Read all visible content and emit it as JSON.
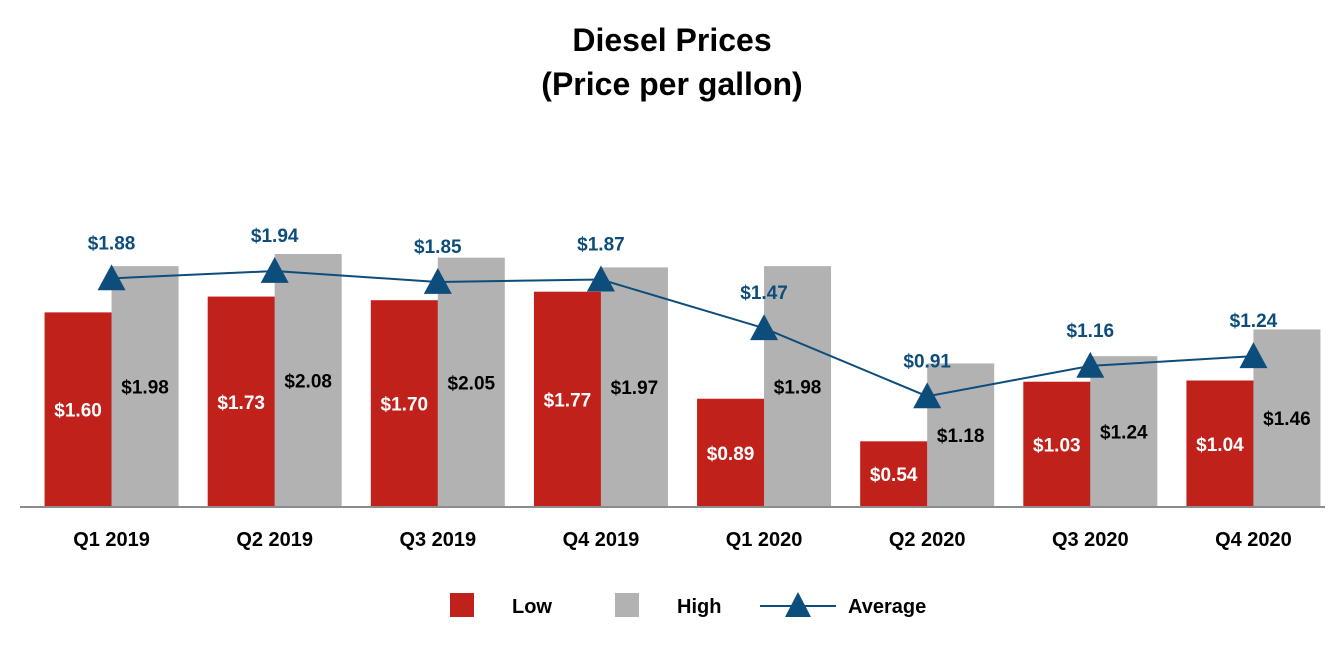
{
  "chart_data": {
    "type": "bar",
    "title": "Diesel Prices",
    "subtitle": "(Price per gallon)",
    "categories": [
      "Q1 2019",
      "Q2 2019",
      "Q3 2019",
      "Q4 2019",
      "Q1 2020",
      "Q2 2020",
      "Q3 2020",
      "Q4 2020"
    ],
    "series": [
      {
        "name": "Low",
        "kind": "bar",
        "color": "#c0211a",
        "label_color": "#ffffff",
        "values": [
          1.6,
          1.73,
          1.7,
          1.77,
          0.89,
          0.54,
          1.03,
          1.04
        ],
        "labels": [
          "$1.60",
          "$1.73",
          "$1.70",
          "$1.77",
          "$0.89",
          "$0.54",
          "$1.03",
          "$1.04"
        ]
      },
      {
        "name": "High",
        "kind": "bar",
        "color": "#b2b2b2",
        "label_color": "#000000",
        "values": [
          1.98,
          2.08,
          2.05,
          1.97,
          1.98,
          1.18,
          1.24,
          1.46
        ],
        "labels": [
          "$1.98",
          "$2.08",
          "$2.05",
          "$1.97",
          "$1.98",
          "$1.18",
          "$1.24",
          "$1.46"
        ]
      },
      {
        "name": "Average",
        "kind": "line",
        "marker": "triangle",
        "color": "#0d4d7c",
        "values": [
          1.88,
          1.94,
          1.85,
          1.87,
          1.47,
          0.91,
          1.16,
          1.24
        ],
        "labels": [
          "$1.88",
          "$1.94",
          "$1.85",
          "$1.87",
          "$1.47",
          "$0.91",
          "$1.16",
          "$1.24"
        ]
      }
    ],
    "ylim": [
      0,
      2.08
    ],
    "grid": false,
    "legend": "bottom"
  }
}
